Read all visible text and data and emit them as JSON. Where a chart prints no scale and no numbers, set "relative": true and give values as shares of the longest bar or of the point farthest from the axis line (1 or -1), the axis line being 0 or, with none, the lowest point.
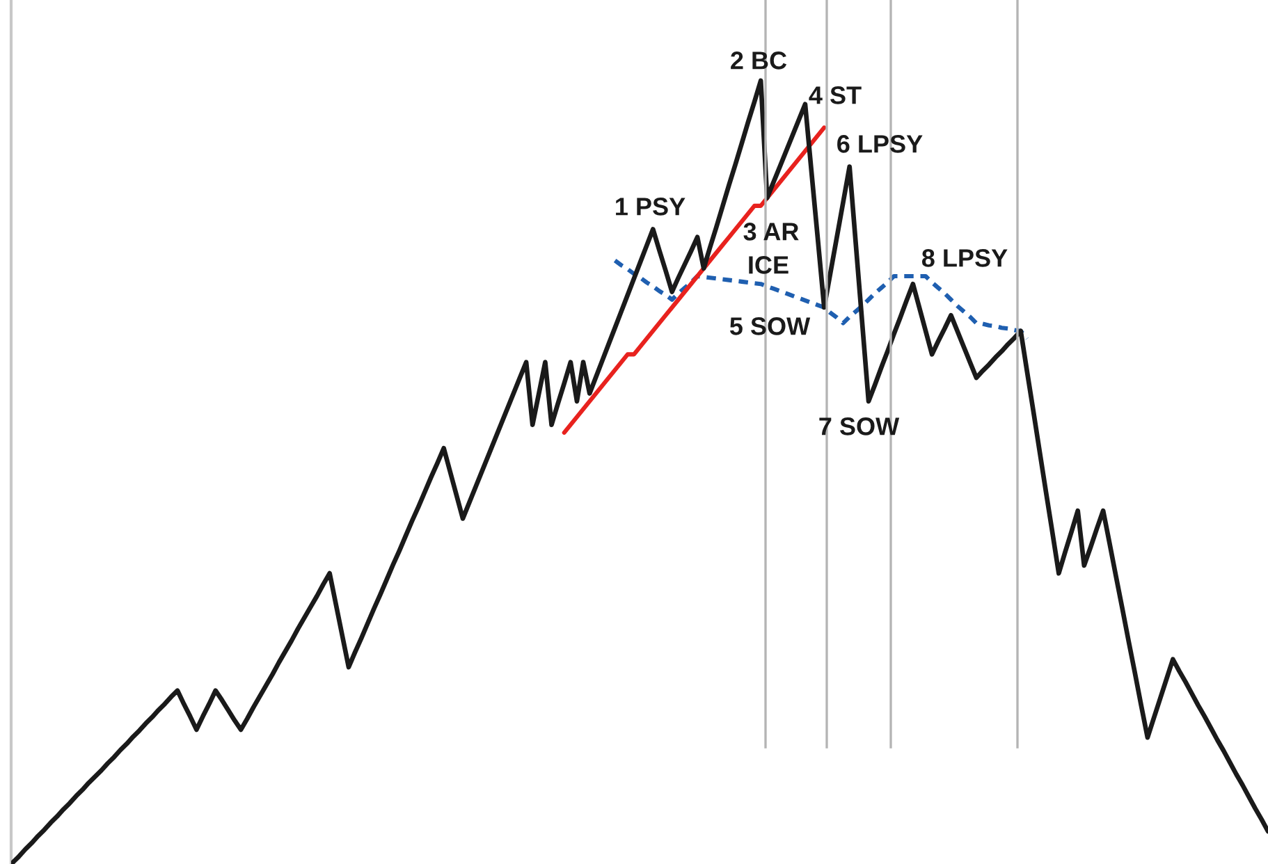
{
  "chart_data": {
    "type": "line",
    "relative": true,
    "marker": "none",
    "categories": [
      null,
      null,
      null,
      null,
      null,
      null,
      null,
      null,
      null,
      null,
      null,
      null,
      null,
      null,
      null,
      null,
      null,
      null,
      null,
      null,
      null,
      null,
      null,
      null,
      null,
      null,
      null,
      null,
      null,
      null,
      null,
      null,
      null,
      null,
      null,
      null,
      null,
      null,
      null,
      null,
      null,
      null,
      null,
      null,
      null,
      null,
      null,
      null,
      null,
      null,
      null,
      null,
      null,
      null,
      null,
      null,
      null,
      null,
      null,
      null,
      null,
      null,
      null,
      null,
      null,
      null,
      null,
      null,
      null,
      null,
      null,
      null,
      null,
      null,
      null,
      null,
      null,
      null,
      null,
      null,
      null,
      null,
      null,
      null,
      null,
      null,
      null,
      null,
      null,
      null,
      null,
      null,
      null,
      null,
      null,
      null,
      null,
      null,
      null,
      null,
      null,
      null,
      null,
      null,
      null,
      null,
      null,
      null,
      null,
      null,
      null,
      null,
      null,
      null,
      null,
      null,
      null,
      null,
      null,
      null,
      null,
      null,
      null,
      null,
      null,
      null,
      null,
      null,
      null,
      null,
      null,
      null,
      null,
      null,
      null,
      null,
      null,
      null,
      null,
      null,
      null,
      null,
      null,
      null,
      null,
      null,
      null,
      null,
      null,
      null,
      null,
      null,
      null,
      null,
      null,
      null,
      null,
      null,
      null,
      null,
      null,
      null,
      null,
      null,
      null,
      null,
      null,
      null,
      null,
      null,
      null,
      null,
      null,
      null,
      null,
      null,
      null,
      null,
      null,
      null,
      null,
      null,
      null,
      null,
      null,
      null,
      null,
      null,
      null,
      null,
      null,
      null,
      null,
      null,
      null,
      null,
      null,
      null,
      null
    ],
    "series": [
      {
        "color": "#1a1a1a",
        "line_style": "solid",
        "values": [
          0,
          0.008,
          0.017,
          0.025,
          0.034,
          0.042,
          0.051,
          0.059,
          0.068,
          0.076,
          0.085,
          0.093,
          0.102,
          0.11,
          0.118,
          0.127,
          0.135,
          0.144,
          0.152,
          0.161,
          0.169,
          0.178,
          0.186,
          0.195,
          0.203,
          0.212,
          0.22,
          0.203,
          0.187,
          0.17,
          0.187,
          0.203,
          0.22,
          0.208,
          0.195,
          0.182,
          0.17,
          0.184,
          0.199,
          0.213,
          0.227,
          0.241,
          0.256,
          0.27,
          0.284,
          0.299,
          0.313,
          0.327,
          0.341,
          0.356,
          0.37,
          0.33,
          0.29,
          0.25,
          0.269,
          0.287,
          0.306,
          0.325,
          0.343,
          0.362,
          0.381,
          0.399,
          0.418,
          0.437,
          0.455,
          0.474,
          0.493,
          0.511,
          0.53,
          0.5,
          0.47,
          0.44,
          0.46,
          0.48,
          0.5,
          0.52,
          0.54,
          0.56,
          0.58,
          0.6,
          0.62,
          0.64,
          0.56,
          0.6,
          0.64,
          0.56,
          0.587,
          0.613,
          0.64,
          0.59,
          0.64,
          0.6,
          0.621,
          0.642,
          0.663,
          0.684,
          0.705,
          0.726,
          0.747,
          0.768,
          0.789,
          0.81,
          0.783,
          0.757,
          0.73,
          0.748,
          0.765,
          0.782,
          0.8,
          0.76,
          0.787,
          0.813,
          0.84,
          0.867,
          0.893,
          0.92,
          0.947,
          0.973,
          1,
          0.85,
          0.87,
          0.89,
          0.91,
          0.93,
          0.95,
          0.97,
          0.883,
          0.797,
          0.71,
          0.755,
          0.8,
          0.845,
          0.89,
          0.79,
          0.69,
          0.59,
          0.611,
          0.633,
          0.654,
          0.676,
          0.697,
          0.719,
          0.74,
          0.71,
          0.68,
          0.65,
          0.667,
          0.683,
          0.7,
          0.68,
          0.66,
          0.64,
          0.62,
          0.629,
          0.637,
          0.646,
          0.654,
          0.663,
          0.671,
          0.68,
          0.628,
          0.577,
          0.525,
          0.473,
          0.422,
          0.37,
          0.397,
          0.423,
          0.45,
          0.38,
          0.403,
          0.427,
          0.45,
          0.409,
          0.367,
          0.326,
          0.284,
          0.243,
          0.201,
          0.16,
          0.185,
          0.21,
          0.235,
          0.26,
          0.245,
          0.231,
          0.216,
          0.201,
          0.187,
          0.172,
          0.157,
          0.143,
          0.128,
          0.113,
          0.099,
          0.084,
          0.069,
          0.055,
          0.04
        ]
      },
      {
        "color": "#e8221e",
        "line_style": "solid",
        "values": [
          null,
          null,
          null,
          null,
          null,
          null,
          null,
          null,
          null,
          null,
          null,
          null,
          null,
          null,
          null,
          null,
          null,
          null,
          null,
          null,
          null,
          null,
          null,
          null,
          null,
          null,
          null,
          null,
          null,
          null,
          null,
          null,
          null,
          null,
          null,
          null,
          null,
          null,
          null,
          null,
          null,
          null,
          null,
          null,
          null,
          null,
          null,
          null,
          null,
          null,
          null,
          null,
          null,
          null,
          null,
          null,
          null,
          null,
          null,
          null,
          null,
          null,
          null,
          null,
          null,
          null,
          null,
          null,
          null,
          null,
          null,
          null,
          null,
          null,
          null,
          null,
          null,
          null,
          null,
          null,
          null,
          null,
          null,
          null,
          null,
          null,
          null,
          0.55,
          0.56,
          0.57,
          0.58,
          0.59,
          0.6,
          0.61,
          0.62,
          0.63,
          0.64,
          0.65,
          0.65,
          0.66,
          0.67,
          0.68,
          0.69,
          0.7,
          0.71,
          0.72,
          0.73,
          0.74,
          0.75,
          0.76,
          0.77,
          0.78,
          0.79,
          0.8,
          0.81,
          0.82,
          0.83,
          0.84,
          0.84,
          0.85,
          0.86,
          0.87,
          0.88,
          0.89,
          0.9,
          0.91,
          0.92,
          0.93,
          0.94,
          null,
          null,
          null,
          null,
          null,
          null,
          null,
          null,
          null,
          null,
          null,
          null,
          null,
          null,
          null,
          null,
          null,
          null,
          null,
          null,
          null,
          null,
          null,
          null,
          null,
          null,
          null,
          null,
          null,
          null,
          null,
          null,
          null,
          null,
          null,
          null,
          null,
          null,
          null,
          null,
          null,
          null,
          null,
          null,
          null,
          null,
          null,
          null,
          null,
          null,
          null,
          null,
          null,
          null,
          null,
          null,
          null,
          null,
          null,
          null,
          null,
          null,
          null,
          null,
          null,
          null,
          null,
          null,
          null,
          null
        ]
      },
      {
        "color": "#1f5fb0",
        "line_style": "dashed",
        "values": [
          null,
          null,
          null,
          null,
          null,
          null,
          null,
          null,
          null,
          null,
          null,
          null,
          null,
          null,
          null,
          null,
          null,
          null,
          null,
          null,
          null,
          null,
          null,
          null,
          null,
          null,
          null,
          null,
          null,
          null,
          null,
          null,
          null,
          null,
          null,
          null,
          null,
          null,
          null,
          null,
          null,
          null,
          null,
          null,
          null,
          null,
          null,
          null,
          null,
          null,
          null,
          null,
          null,
          null,
          null,
          null,
          null,
          null,
          null,
          null,
          null,
          null,
          null,
          null,
          null,
          null,
          null,
          null,
          null,
          null,
          null,
          null,
          null,
          null,
          null,
          null,
          null,
          null,
          null,
          null,
          null,
          null,
          null,
          null,
          null,
          null,
          null,
          null,
          null,
          null,
          null,
          null,
          null,
          null,
          null,
          0.77,
          0.764,
          0.759,
          0.753,
          0.748,
          0.742,
          0.737,
          0.731,
          0.726,
          0.72,
          0.728,
          0.735,
          0.742,
          0.75,
          0.749,
          0.748,
          0.747,
          0.746,
          0.745,
          0.744,
          0.743,
          0.742,
          0.741,
          0.74,
          0.737,
          0.734,
          0.731,
          0.728,
          0.725,
          0.722,
          0.719,
          0.716,
          0.713,
          0.71,
          0.703,
          0.697,
          0.69,
          0.698,
          0.705,
          0.712,
          0.72,
          0.728,
          0.735,
          0.742,
          0.75,
          0.75,
          0.75,
          0.75,
          0.75,
          0.75,
          0.742,
          0.735,
          0.728,
          0.72,
          0.712,
          0.705,
          0.698,
          0.69,
          0.689,
          0.687,
          0.686,
          0.684,
          0.683,
          0.681,
          0.68,
          0.67,
          null,
          null,
          null,
          null,
          null,
          null,
          null,
          null,
          null,
          null,
          null,
          null,
          null,
          null,
          null,
          null,
          null,
          null,
          null,
          null,
          null,
          null,
          null,
          null,
          null,
          null,
          null,
          null,
          null,
          null,
          null,
          null,
          null,
          null,
          null,
          null,
          null,
          null
        ]
      }
    ],
    "annotations": [
      "1 PSY",
      "2 BC",
      "3 AR",
      "ICE",
      "4 ST",
      "5 SOW",
      "6 LPSY",
      "7 SOW",
      "8 LPSY"
    ]
  }
}
